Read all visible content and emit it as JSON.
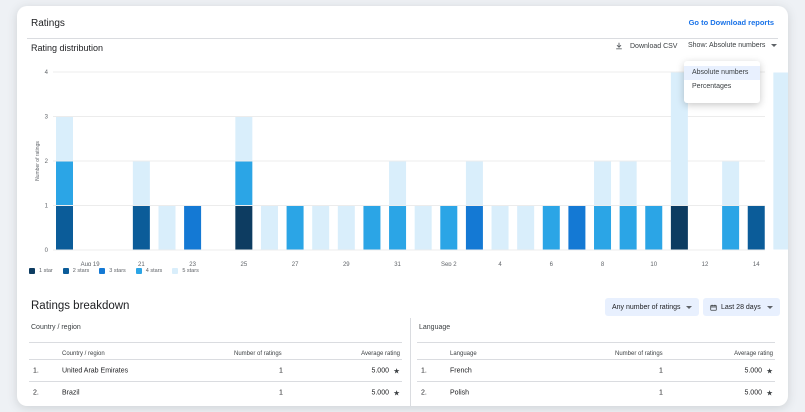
{
  "header": {
    "title": "Ratings",
    "link": "Go to Download reports"
  },
  "distribution": {
    "title": "Rating distribution",
    "download_csv": "Download CSV",
    "show_label": "Show: Absolute numbers",
    "dropdown": [
      "Absolute numbers",
      "Percentages"
    ],
    "selected_option": "Absolute numbers"
  },
  "chart_data": {
    "type": "bar",
    "stacked": true,
    "ylabel": "Number of ratings",
    "ylim": [
      0,
      4
    ],
    "yticks": [
      0,
      1,
      2,
      3,
      4
    ],
    "x_tick_labels": [
      "Aug 19",
      "21",
      "23",
      "25",
      "27",
      "29",
      "31",
      "Sep 2",
      "4",
      "6",
      "8",
      "10",
      "12",
      "14"
    ],
    "categories": [
      "Aug 18",
      "Aug 19",
      "Aug 20",
      "Aug 21",
      "Aug 22",
      "Aug 23",
      "Aug 24",
      "Aug 25",
      "Aug 26",
      "Aug 27",
      "Aug 28",
      "Aug 29",
      "Aug 30",
      "Aug 31",
      "Sep 1",
      "Sep 2",
      "Sep 3",
      "Sep 4",
      "Sep 5",
      "Sep 6",
      "Sep 7",
      "Sep 8",
      "Sep 9",
      "Sep 10",
      "Sep 11",
      "Sep 12",
      "Sep 13",
      "Sep 14",
      "Sep 15"
    ],
    "series": [
      {
        "name": "1 star",
        "values": [
          0,
          0,
          0,
          0,
          0,
          0,
          0,
          1,
          0,
          0,
          0,
          0,
          0,
          0,
          0,
          0,
          0,
          0,
          0,
          0,
          0,
          0,
          0,
          0,
          1,
          0,
          0,
          0,
          0
        ]
      },
      {
        "name": "2 stars",
        "values": [
          1,
          0,
          0,
          1,
          0,
          0,
          0,
          0,
          0,
          0,
          0,
          0,
          0,
          0,
          0,
          0,
          0,
          0,
          0,
          0,
          0,
          0,
          0,
          0,
          0,
          0,
          0,
          1,
          0
        ]
      },
      {
        "name": "3 stars",
        "values": [
          0,
          0,
          0,
          0,
          0,
          1,
          0,
          0,
          0,
          0,
          0,
          0,
          0,
          0,
          0,
          0,
          1,
          0,
          0,
          0,
          1,
          0,
          0,
          0,
          0,
          0,
          0,
          0,
          0
        ]
      },
      {
        "name": "4 stars",
        "values": [
          1,
          0,
          0,
          0,
          0,
          0,
          0,
          1,
          0,
          1,
          0,
          0,
          1,
          1,
          0,
          1,
          0,
          0,
          0,
          1,
          0,
          1,
          1,
          1,
          0,
          0,
          1,
          0,
          0
        ]
      },
      {
        "name": "5 stars",
        "values": [
          1,
          0,
          0,
          1,
          1,
          0,
          0,
          1,
          1,
          0,
          1,
          1,
          0,
          1,
          1,
          0,
          1,
          1,
          1,
          0,
          0,
          1,
          1,
          0,
          3,
          0,
          1,
          0,
          4
        ]
      }
    ],
    "colors": [
      "#0d3c61",
      "#0b5c99",
      "#1479d4",
      "#2ba5e6",
      "#d9eefb"
    ]
  },
  "breakdown": {
    "title": "Ratings breakdown",
    "filter_chip": "Any number of ratings",
    "date_chip": "Last 28 days",
    "country": {
      "caption": "Country / region",
      "headers": [
        "Country / region",
        "Number of ratings",
        "Average rating"
      ],
      "rows": [
        {
          "idx": "1.",
          "name": "United Arab Emirates",
          "count": "1",
          "avg": "5.000"
        },
        {
          "idx": "2.",
          "name": "Brazil",
          "count": "1",
          "avg": "5.000"
        }
      ]
    },
    "language": {
      "caption": "Language",
      "headers": [
        "Language",
        "Number of ratings",
        "Average rating"
      ],
      "rows": [
        {
          "idx": "1.",
          "name": "French",
          "count": "1",
          "avg": "5.000"
        },
        {
          "idx": "2.",
          "name": "Polish",
          "count": "1",
          "avg": "5.000"
        }
      ]
    }
  }
}
